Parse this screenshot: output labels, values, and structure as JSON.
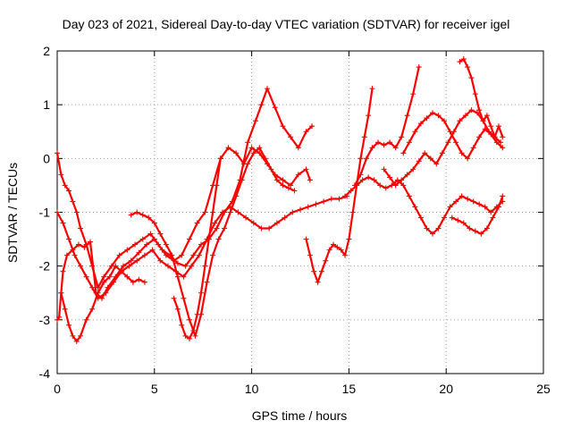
{
  "chart_data": {
    "type": "scatter",
    "title": "Day 023 of 2021, Sidereal Day-to-day VTEC variation (SDTVAR) for receiver igel",
    "xlabel": "GPS time / hours",
    "ylabel": "SDTVAR / TECUs",
    "xlim": [
      0,
      25
    ],
    "ylim": [
      -4,
      2
    ],
    "xticks": [
      "0",
      "5",
      "10",
      "15",
      "20",
      "25"
    ],
    "yticks": [
      "-4",
      "-3",
      "-2",
      "-1",
      "0",
      "1",
      "2"
    ],
    "grid": true,
    "marker": "plus",
    "color": "#ff0000",
    "series": [
      {
        "x": [
          0.0,
          0.1,
          0.2,
          0.3,
          0.5,
          0.8,
          1.1,
          1.4,
          1.7,
          2.0,
          2.3,
          2.6,
          3.0,
          3.4,
          3.8,
          4.2,
          4.6,
          5.0,
          5.4,
          5.8,
          6.2,
          6.6,
          7.0,
          7.4,
          7.8,
          8.2,
          8.6,
          9.0,
          9.4,
          9.8,
          10.2,
          10.5,
          10.8,
          11.2,
          11.6,
          12.0,
          12.4,
          12.8,
          13.1
        ],
        "y": [
          -3.0,
          -2.95,
          -2.5,
          -2.1,
          -1.8,
          -1.7,
          -1.6,
          -1.65,
          -1.55,
          -2.5,
          -2.6,
          -2.4,
          -2.2,
          -2.0,
          -1.9,
          -1.75,
          -1.6,
          -1.5,
          -1.7,
          -1.8,
          -1.95,
          -2.0,
          -1.8,
          -1.6,
          -1.5,
          -1.3,
          -1.0,
          -0.8,
          -0.4,
          0.3,
          0.7,
          1.0,
          1.3,
          0.95,
          0.6,
          0.4,
          0.2,
          0.5,
          0.6
        ]
      },
      {
        "x": [
          0.0,
          0.2,
          0.4,
          0.6,
          0.8,
          1.0,
          1.2,
          1.5,
          1.8,
          2.1,
          2.4,
          2.8,
          3.2,
          3.6,
          4.0,
          4.4,
          4.8,
          5.2,
          5.6,
          6.0,
          6.4,
          6.8,
          7.2,
          7.6,
          8.0,
          8.4,
          8.8,
          9.2,
          9.6,
          10.0,
          10.4,
          10.8,
          11.2,
          11.6,
          12.0,
          12.4,
          12.8,
          13.0
        ],
        "y": [
          0.1,
          -0.3,
          -0.5,
          -0.6,
          -0.8,
          -1.0,
          -1.3,
          -1.6,
          -2.0,
          -2.4,
          -2.2,
          -2.0,
          -1.8,
          -1.7,
          -1.6,
          -1.5,
          -1.4,
          -1.6,
          -1.8,
          -1.9,
          -1.8,
          -1.5,
          -1.2,
          -1.0,
          -0.5,
          0.0,
          0.2,
          0.1,
          -0.1,
          0.2,
          0.1,
          -0.1,
          -0.3,
          -0.4,
          -0.5,
          -0.3,
          -0.2,
          -0.4
        ]
      },
      {
        "x": [
          0.0,
          0.3,
          0.6,
          0.9,
          1.2,
          1.5,
          1.8,
          2.1,
          2.5,
          2.9,
          3.3,
          3.7,
          4.1,
          4.5,
          4.9,
          5.3,
          5.7,
          6.1,
          6.5,
          6.9,
          7.3,
          7.7,
          8.1,
          8.5,
          8.9,
          9.3,
          9.7,
          10.1,
          10.5,
          10.9,
          11.3,
          11.7,
          12.1,
          12.5,
          12.9,
          13.3,
          13.7,
          14.1,
          14.5,
          14.9
        ],
        "y": [
          -1.0,
          -1.2,
          -1.5,
          -1.8,
          -2.0,
          -2.2,
          -2.4,
          -2.6,
          -2.5,
          -2.3,
          -2.1,
          -2.0,
          -1.9,
          -1.8,
          -1.7,
          -1.9,
          -2.0,
          -2.1,
          -2.2,
          -2.0,
          -1.8,
          -1.5,
          -1.2,
          -1.0,
          -0.9,
          -1.0,
          -1.1,
          -1.2,
          -1.3,
          -1.3,
          -1.2,
          -1.1,
          -1.0,
          -0.95,
          -0.9,
          -0.85,
          -0.8,
          -0.75,
          -0.75,
          -0.7
        ]
      },
      {
        "x": [
          0.2,
          0.4,
          0.6,
          0.8,
          1.0,
          1.2,
          1.5,
          1.8,
          2.1,
          2.4,
          2.7,
          3.0,
          3.3,
          3.6,
          3.9,
          4.2,
          4.5
        ],
        "y": [
          -2.5,
          -2.8,
          -3.1,
          -3.3,
          -3.4,
          -3.3,
          -3.0,
          -2.8,
          -2.5,
          -2.3,
          -2.2,
          -2.0,
          -2.1,
          -2.2,
          -2.3,
          -2.25,
          -2.3
        ]
      },
      {
        "x": [
          3.8,
          4.1,
          4.4,
          4.7,
          5.0,
          5.3,
          5.6,
          5.9,
          6.2,
          6.5,
          6.8,
          7.1,
          7.4,
          7.7,
          8.0,
          8.3,
          8.6,
          8.9,
          9.2,
          9.5,
          9.8,
          10.1,
          10.4,
          10.7,
          11.0,
          11.3,
          11.6,
          11.9,
          12.2
        ],
        "y": [
          -1.05,
          -1.0,
          -1.05,
          -1.1,
          -1.2,
          -1.4,
          -1.6,
          -1.8,
          -2.2,
          -2.6,
          -3.0,
          -3.3,
          -2.9,
          -2.3,
          -1.8,
          -1.5,
          -1.3,
          -1.0,
          -0.7,
          -0.4,
          -0.1,
          0.1,
          0.2,
          0.0,
          -0.2,
          -0.4,
          -0.5,
          -0.55,
          -0.6
        ]
      },
      {
        "x": [
          6.0,
          6.2,
          6.4,
          6.6,
          6.8,
          7.0,
          7.2,
          7.4,
          7.6,
          7.8,
          8.0,
          8.2,
          8.4
        ],
        "y": [
          -2.6,
          -2.8,
          -3.1,
          -3.3,
          -3.35,
          -3.2,
          -2.9,
          -2.5,
          -2.0,
          -1.5,
          -1.0,
          -0.5,
          0.0
        ]
      },
      {
        "x": [
          12.8,
          13.0,
          13.2,
          13.4,
          13.6,
          13.8,
          14.0,
          14.2,
          14.4,
          14.6,
          14.8,
          15.0,
          15.2,
          15.4,
          15.6,
          15.8,
          16.0,
          16.2
        ],
        "y": [
          -1.5,
          -1.8,
          -2.1,
          -2.3,
          -2.1,
          -1.9,
          -1.7,
          -1.6,
          -1.65,
          -1.7,
          -1.8,
          -1.5,
          -1.0,
          -0.5,
          0.0,
          0.4,
          0.8,
          1.3
        ]
      },
      {
        "x": [
          14.8,
          15.1,
          15.4,
          15.7,
          16.0,
          16.3,
          16.6,
          16.9,
          17.2,
          17.5,
          17.8,
          18.1,
          18.4,
          18.7,
          19.0,
          19.3,
          19.6,
          19.9,
          20.2,
          20.5,
          20.8,
          21.1,
          21.4,
          21.7,
          22.0,
          22.3,
          22.6,
          22.9
        ],
        "y": [
          -0.7,
          -0.6,
          -0.5,
          -0.4,
          -0.35,
          -0.4,
          -0.5,
          -0.55,
          -0.5,
          -0.4,
          -0.5,
          -0.7,
          -0.9,
          -1.1,
          -1.3,
          -1.4,
          -1.3,
          -1.1,
          -0.9,
          -0.8,
          -0.7,
          -0.75,
          -0.8,
          -0.85,
          -0.9,
          -1.0,
          -0.9,
          -0.8
        ]
      },
      {
        "x": [
          15.3,
          15.6,
          15.9,
          16.2,
          16.5,
          16.8,
          17.1,
          17.4,
          17.7,
          18.0,
          18.3,
          18.6
        ],
        "y": [
          -0.5,
          -0.3,
          0.0,
          0.2,
          0.3,
          0.25,
          0.3,
          0.2,
          0.4,
          0.8,
          1.2,
          1.7
        ]
      },
      {
        "x": [
          16.8,
          17.1,
          17.4,
          17.7,
          18.0,
          18.3,
          18.6,
          18.9,
          19.2,
          19.5,
          19.8,
          20.1,
          20.4,
          20.7,
          21.0,
          21.3,
          21.6,
          21.9,
          22.2,
          22.5,
          22.8
        ],
        "y": [
          -0.2,
          -0.35,
          -0.5,
          -0.4,
          -0.3,
          -0.2,
          -0.05,
          0.1,
          0.0,
          -0.1,
          0.1,
          0.3,
          0.5,
          0.7,
          0.8,
          0.9,
          0.85,
          0.7,
          0.5,
          0.4,
          0.3
        ]
      },
      {
        "x": [
          17.8,
          18.1,
          18.4,
          18.7,
          19.0,
          19.3,
          19.6,
          19.9,
          20.2,
          20.5,
          20.8,
          21.1,
          21.4,
          21.7,
          22.0,
          22.3,
          22.6,
          22.9
        ],
        "y": [
          0.1,
          0.3,
          0.5,
          0.65,
          0.75,
          0.85,
          0.8,
          0.7,
          0.5,
          0.3,
          0.1,
          0.0,
          0.2,
          0.4,
          0.55,
          0.45,
          0.3,
          0.2
        ]
      },
      {
        "x": [
          20.7,
          20.9,
          21.1,
          21.3,
          21.5,
          21.7,
          21.9,
          22.1,
          22.3,
          22.5,
          22.7,
          22.9
        ],
        "y": [
          1.8,
          1.85,
          1.7,
          1.5,
          1.2,
          0.9,
          0.7,
          0.8,
          0.6,
          0.4,
          0.6,
          0.4
        ]
      },
      {
        "x": [
          20.3,
          20.6,
          20.9,
          21.2,
          21.5,
          21.8,
          22.1,
          22.4,
          22.7,
          22.9
        ],
        "y": [
          -1.1,
          -1.15,
          -1.2,
          -1.3,
          -1.35,
          -1.4,
          -1.3,
          -1.1,
          -0.9,
          -0.7
        ]
      }
    ]
  }
}
